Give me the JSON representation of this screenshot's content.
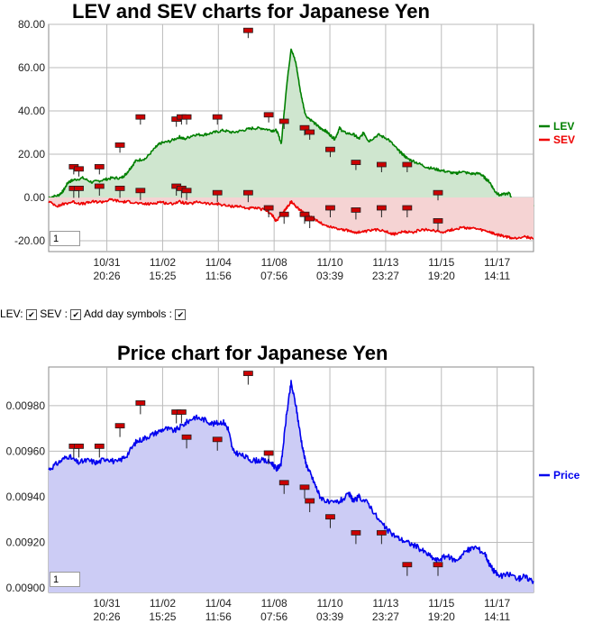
{
  "chart_data": [
    {
      "type": "area",
      "title": "LEV and SEV charts for Japanese Yen",
      "ylim": [
        -25,
        80
      ],
      "yticks": [
        "-20.00",
        "0.00",
        "20.00",
        "40.00",
        "60.00",
        "80.00"
      ],
      "ytick_values": [
        -20,
        0,
        20,
        40,
        60,
        80
      ],
      "xlim": [
        0,
        100
      ],
      "xticks": [
        {
          "x": 12,
          "date": "10/31",
          "time": "20:26"
        },
        {
          "x": 23.5,
          "date": "11/02",
          "time": "15:25"
        },
        {
          "x": 35,
          "date": "11/04",
          "time": "11:56"
        },
        {
          "x": 46.5,
          "date": "11/08",
          "time": "07:56"
        },
        {
          "x": 58,
          "date": "11/10",
          "time": "03:39"
        },
        {
          "x": 69.5,
          "date": "11/13",
          "time": "23:27"
        },
        {
          "x": 81,
          "date": "11/15",
          "time": "19:20"
        },
        {
          "x": 92.5,
          "date": "11/17",
          "time": "14:11"
        }
      ],
      "grid": true,
      "legend_position": "right",
      "series": [
        {
          "name": "LEV",
          "color": "#008000",
          "fill": "#cfe6cf",
          "points": [
            [
              0,
              0
            ],
            [
              2,
              1
            ],
            [
              3,
              3
            ],
            [
              4,
              7
            ],
            [
              5,
              8
            ],
            [
              7,
              9
            ],
            [
              9,
              7
            ],
            [
              11,
              8
            ],
            [
              13,
              9
            ],
            [
              15,
              9
            ],
            [
              16,
              11
            ],
            [
              17,
              14
            ],
            [
              18,
              17
            ],
            [
              20,
              18
            ],
            [
              22,
              23
            ],
            [
              23,
              25
            ],
            [
              25,
              26
            ],
            [
              27,
              28
            ],
            [
              28,
              27
            ],
            [
              30,
              29
            ],
            [
              32,
              29
            ],
            [
              34,
              30
            ],
            [
              36,
              31
            ],
            [
              38,
              30
            ],
            [
              40,
              31
            ],
            [
              42,
              32
            ],
            [
              44,
              32
            ],
            [
              46,
              31
            ],
            [
              47,
              31
            ],
            [
              48,
              25
            ],
            [
              49,
              50
            ],
            [
              50,
              69
            ],
            [
              51,
              62
            ],
            [
              52,
              48
            ],
            [
              53,
              38
            ],
            [
              55,
              34
            ],
            [
              56,
              32
            ],
            [
              57,
              31
            ],
            [
              58,
              29
            ],
            [
              59,
              27
            ],
            [
              60,
              32
            ],
            [
              61,
              30
            ],
            [
              63,
              29
            ],
            [
              64,
              27
            ],
            [
              65,
              30
            ],
            [
              66,
              26
            ],
            [
              68,
              29
            ],
            [
              70,
              27
            ],
            [
              72,
              22
            ],
            [
              73,
              20
            ],
            [
              74,
              18
            ],
            [
              76,
              16
            ],
            [
              78,
              14
            ],
            [
              80,
              13
            ],
            [
              82,
              12
            ],
            [
              84,
              11
            ],
            [
              85,
              12
            ],
            [
              87,
              11
            ],
            [
              89,
              11
            ],
            [
              90,
              9
            ],
            [
              91,
              7
            ],
            [
              92,
              3
            ],
            [
              93,
              1
            ],
            [
              95,
              2
            ],
            [
              96,
              -3
            ],
            [
              97,
              -2
            ],
            [
              98,
              -3
            ],
            [
              100,
              -4
            ]
          ]
        },
        {
          "name": "SEV",
          "color": "#ee0000",
          "fill": "#f5d3d3",
          "points": [
            [
              0,
              -2
            ],
            [
              2,
              -4
            ],
            [
              3,
              -3
            ],
            [
              5,
              -2
            ],
            [
              7,
              -3
            ],
            [
              9,
              -2
            ],
            [
              11,
              -2
            ],
            [
              13,
              -1
            ],
            [
              15,
              -2
            ],
            [
              17,
              -2
            ],
            [
              19,
              -3
            ],
            [
              21,
              -3
            ],
            [
              23,
              -2
            ],
            [
              25,
              -3
            ],
            [
              27,
              -2
            ],
            [
              29,
              -3
            ],
            [
              31,
              -2
            ],
            [
              33,
              -3
            ],
            [
              35,
              -3
            ],
            [
              37,
              -4
            ],
            [
              39,
              -4
            ],
            [
              41,
              -5
            ],
            [
              43,
              -5
            ],
            [
              45,
              -6
            ],
            [
              46,
              -8
            ],
            [
              47,
              -11
            ],
            [
              48,
              -8
            ],
            [
              49,
              -5
            ],
            [
              50,
              -2
            ],
            [
              51,
              -4
            ],
            [
              52,
              -6
            ],
            [
              53,
              -8
            ],
            [
              55,
              -10
            ],
            [
              57,
              -13
            ],
            [
              59,
              -14
            ],
            [
              61,
              -15
            ],
            [
              63,
              -16
            ],
            [
              65,
              -16
            ],
            [
              67,
              -15
            ],
            [
              69,
              -15
            ],
            [
              71,
              -17
            ],
            [
              73,
              -16
            ],
            [
              75,
              -16
            ],
            [
              77,
              -15
            ],
            [
              79,
              -15
            ],
            [
              81,
              -16
            ],
            [
              83,
              -15
            ],
            [
              85,
              -14
            ],
            [
              87,
              -14
            ],
            [
              89,
              -15
            ],
            [
              91,
              -16
            ],
            [
              92,
              -17
            ],
            [
              94,
              -18
            ],
            [
              96,
              -19
            ],
            [
              98,
              -18
            ],
            [
              100,
              -19
            ]
          ]
        }
      ],
      "day_markers_lev": [
        [
          3,
          14
        ],
        [
          4,
          13
        ],
        [
          8,
          14
        ],
        [
          12,
          24
        ],
        [
          16,
          37
        ],
        [
          23,
          36
        ],
        [
          24,
          37
        ],
        [
          25,
          37
        ],
        [
          31,
          37
        ],
        [
          37,
          77
        ],
        [
          41,
          38
        ],
        [
          44,
          35
        ],
        [
          48,
          32
        ],
        [
          49,
          30
        ],
        [
          53,
          22
        ],
        [
          58,
          16
        ],
        [
          63,
          15
        ],
        [
          68,
          15
        ],
        [
          74,
          2
        ]
      ],
      "day_markers_sev": [
        [
          3,
          4
        ],
        [
          4,
          4
        ],
        [
          8,
          5
        ],
        [
          12,
          4
        ],
        [
          16,
          3
        ],
        [
          23,
          5
        ],
        [
          24,
          4
        ],
        [
          25,
          3
        ],
        [
          31,
          2
        ],
        [
          37,
          2
        ],
        [
          41,
          -5
        ],
        [
          44,
          -8
        ],
        [
          48,
          -8
        ],
        [
          49,
          -10
        ],
        [
          53,
          -5
        ],
        [
          58,
          -6
        ],
        [
          63,
          -5
        ],
        [
          68,
          -5
        ],
        [
          74,
          -11
        ]
      ]
    },
    {
      "type": "area",
      "title": "Price chart for Japanese Yen",
      "ylim": [
        0.00898,
        0.00997
      ],
      "yticks": [
        "0.00900",
        "0.00920",
        "0.00940",
        "0.00960",
        "0.00980"
      ],
      "ytick_values": [
        0.009,
        0.0092,
        0.0094,
        0.0096,
        0.0098
      ],
      "grid": true,
      "legend_position": "right",
      "series": [
        {
          "name": "Price",
          "color": "#0000ee",
          "fill": "#ccccf5",
          "points": [
            [
              0,
              0.00952
            ],
            [
              2,
              0.00955
            ],
            [
              4,
              0.00958
            ],
            [
              6,
              0.00955
            ],
            [
              8,
              0.00956
            ],
            [
              10,
              0.00955
            ],
            [
              12,
              0.00957
            ],
            [
              14,
              0.00955
            ],
            [
              16,
              0.00958
            ],
            [
              18,
              0.00964
            ],
            [
              20,
              0.00966
            ],
            [
              22,
              0.00968
            ],
            [
              24,
              0.0097
            ],
            [
              26,
              0.00969
            ],
            [
              28,
              0.00972
            ],
            [
              30,
              0.00975
            ],
            [
              32,
              0.00974
            ],
            [
              34,
              0.00972
            ],
            [
              36,
              0.00973
            ],
            [
              37,
              0.0097
            ],
            [
              38,
              0.0096
            ],
            [
              40,
              0.00958
            ],
            [
              42,
              0.00956
            ],
            [
              44,
              0.00956
            ],
            [
              46,
              0.00955
            ],
            [
              47,
              0.00952
            ],
            [
              48,
              0.00955
            ],
            [
              49,
              0.00975
            ],
            [
              50,
              0.0099
            ],
            [
              51,
              0.0098
            ],
            [
              52,
              0.00966
            ],
            [
              53,
              0.00955
            ],
            [
              54,
              0.0095
            ],
            [
              55,
              0.00945
            ],
            [
              56,
              0.0094
            ],
            [
              58,
              0.00937
            ],
            [
              60,
              0.00938
            ],
            [
              62,
              0.00941
            ],
            [
              63,
              0.00938
            ],
            [
              64,
              0.0094
            ],
            [
              66,
              0.00937
            ],
            [
              68,
              0.0093
            ],
            [
              70,
              0.00925
            ],
            [
              72,
              0.00922
            ],
            [
              74,
              0.0092
            ],
            [
              76,
              0.00918
            ],
            [
              78,
              0.00915
            ],
            [
              80,
              0.00912
            ],
            [
              82,
              0.00914
            ],
            [
              84,
              0.00912
            ],
            [
              86,
              0.00916
            ],
            [
              88,
              0.00918
            ],
            [
              90,
              0.00915
            ],
            [
              91,
              0.0091
            ],
            [
              92,
              0.00907
            ],
            [
              93,
              0.00905
            ],
            [
              95,
              0.00906
            ],
            [
              97,
              0.00904
            ],
            [
              98,
              0.00905
            ],
            [
              100,
              0.00903
            ]
          ]
        }
      ],
      "day_markers": [
        [
          3,
          0.00962
        ],
        [
          4,
          0.00962
        ],
        [
          8,
          0.00962
        ],
        [
          12,
          0.00971
        ],
        [
          16,
          0.00981
        ],
        [
          23,
          0.00977
        ],
        [
          24,
          0.00977
        ],
        [
          25,
          0.00966
        ],
        [
          31,
          0.00965
        ],
        [
          37,
          0.00994
        ],
        [
          41,
          0.00959
        ],
        [
          44,
          0.00946
        ],
        [
          48,
          0.00944
        ],
        [
          49,
          0.00938
        ],
        [
          53,
          0.00931
        ],
        [
          58,
          0.00924
        ],
        [
          63,
          0.00924
        ],
        [
          68,
          0.0091
        ],
        [
          74,
          0.0091
        ]
      ]
    }
  ],
  "controls": {
    "lev_label": "LEV:",
    "sev_label": "SEV :",
    "day_symbols_label": "Add day symbols :",
    "check_glyph": "✔"
  },
  "zoom": {
    "chart1_value": "1",
    "chart2_value": "1"
  },
  "colors": {
    "marker": "#cc0000",
    "grid": "#bbbbbb"
  }
}
